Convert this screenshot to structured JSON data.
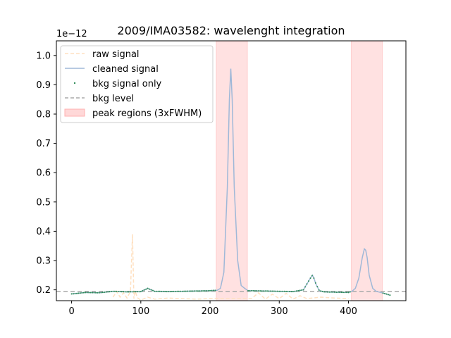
{
  "chart_data": {
    "type": "line",
    "title": "2009/IMA03582: wavelenght integration",
    "xlabel": "",
    "ylabel": "",
    "y_offset_label": "1e−12",
    "xlim": [
      -22,
      483
    ],
    "ylim": [
      0.163,
      1.05
    ],
    "x_ticks": [
      0,
      100,
      200,
      300,
      400
    ],
    "x_tick_labels": [
      "0",
      "100",
      "200",
      "300",
      "400"
    ],
    "y_ticks": [
      0.2,
      0.3,
      0.4,
      0.5,
      0.6,
      0.7,
      0.8,
      0.9,
      1.0
    ],
    "y_tick_labels": [
      "0.2",
      "0.3",
      "0.4",
      "0.5",
      "0.6",
      "0.7",
      "0.8",
      "0.9",
      "1.0"
    ],
    "grid": false,
    "legend_position": "top-left",
    "legend": [
      {
        "label": "raw signal",
        "style": "dashed-line",
        "color": "#ffe0c0"
      },
      {
        "label": "cleaned signal",
        "style": "line",
        "color": "#9fb8d8"
      },
      {
        "label": "bkg signal only",
        "style": "dot",
        "color": "#2e8b57"
      },
      {
        "label": "bkg level",
        "style": "dashed-line",
        "color": "#aaaaaa"
      },
      {
        "label": "peak regions (3xFWHM)",
        "style": "patch",
        "color": "#ffc8c8"
      }
    ],
    "bkg_level": 0.195,
    "peak_regions": [
      [
        209,
        254
      ],
      [
        404,
        449
      ]
    ],
    "series": [
      {
        "name": "cleaned signal",
        "color": "#9fb8d8",
        "x": [
          0,
          20,
          40,
          60,
          80,
          100,
          110,
          120,
          140,
          160,
          180,
          200,
          205,
          210,
          215,
          220,
          225,
          228,
          230,
          232,
          235,
          240,
          245,
          250,
          255,
          260,
          280,
          300,
          320,
          335,
          340,
          345,
          348,
          350,
          353,
          358,
          365,
          380,
          400,
          405,
          410,
          415,
          420,
          423,
          425,
          427,
          430,
          435,
          440,
          450,
          460
        ],
        "values": [
          0.186,
          0.191,
          0.19,
          0.195,
          0.193,
          0.194,
          0.205,
          0.195,
          0.194,
          0.195,
          0.196,
          0.197,
          0.198,
          0.198,
          0.205,
          0.26,
          0.55,
          0.85,
          0.955,
          0.85,
          0.55,
          0.3,
          0.215,
          0.205,
          0.197,
          0.197,
          0.196,
          0.195,
          0.194,
          0.2,
          0.22,
          0.24,
          0.25,
          0.24,
          0.22,
          0.197,
          0.193,
          0.192,
          0.191,
          0.195,
          0.205,
          0.24,
          0.31,
          0.34,
          0.335,
          0.31,
          0.25,
          0.205,
          0.195,
          0.189,
          0.182
        ]
      },
      {
        "name": "raw signal",
        "color": "#ffe0c0",
        "x": [
          60,
          65,
          70,
          75,
          80,
          85,
          88,
          90,
          92,
          95,
          100,
          110,
          120,
          140,
          160,
          180,
          200,
          260,
          270,
          280,
          290,
          300,
          310,
          320,
          330,
          340,
          360,
          380,
          400
        ],
        "values": [
          0.175,
          0.195,
          0.175,
          0.19,
          0.172,
          0.195,
          0.39,
          0.17,
          0.195,
          0.173,
          0.165,
          0.175,
          0.168,
          0.172,
          0.17,
          0.168,
          0.17,
          0.17,
          0.19,
          0.168,
          0.185,
          0.17,
          0.188,
          0.168,
          0.18,
          0.17,
          0.175,
          0.172,
          0.17
        ]
      }
    ]
  }
}
